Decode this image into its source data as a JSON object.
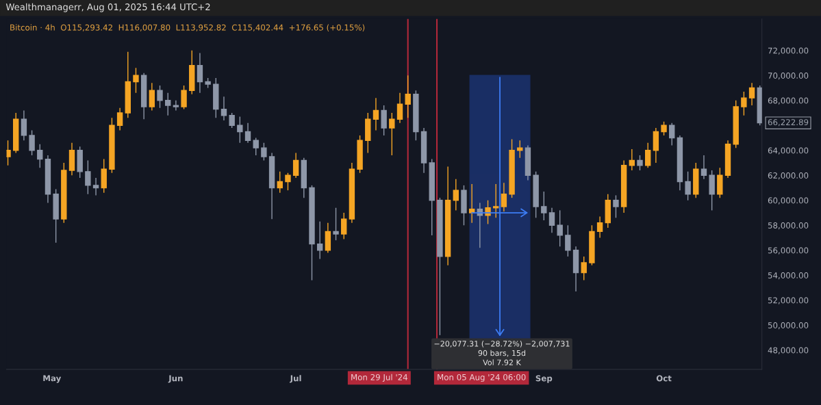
{
  "chart_data": {
    "type": "candlestick",
    "title": "Wealthmanagerr, Aug 01, 2025 16:44 UTC+2",
    "subtitle": "Bitcoin · 4h  O115,293.42  H116,007.80  L113,952.82  C115,402.44  +176.65 (+0.15%)",
    "x": [
      "2024-04-20",
      "2024-04-22",
      "2024-04-24",
      "2024-04-26",
      "2024-04-28",
      "2024-04-30",
      "2024-05-02",
      "2024-05-04",
      "2024-05-06",
      "2024-05-08",
      "2024-05-10",
      "2024-05-12",
      "2024-05-14",
      "2024-05-16",
      "2024-05-18",
      "2024-05-20",
      "2024-05-22",
      "2024-05-24",
      "2024-05-26",
      "2024-05-28",
      "2024-05-30",
      "2024-06-01",
      "2024-06-03",
      "2024-06-05",
      "2024-06-07",
      "2024-06-09",
      "2024-06-11",
      "2024-06-13",
      "2024-06-15",
      "2024-06-17",
      "2024-06-19",
      "2024-06-21",
      "2024-06-23",
      "2024-06-25",
      "2024-06-27",
      "2024-06-29",
      "2024-07-01",
      "2024-07-03",
      "2024-07-05",
      "2024-07-07",
      "2024-07-09",
      "2024-07-11",
      "2024-07-13",
      "2024-07-15",
      "2024-07-17",
      "2024-07-19",
      "2024-07-21",
      "2024-07-23",
      "2024-07-25",
      "2024-07-27",
      "2024-07-29",
      "2024-07-31",
      "2024-08-02",
      "2024-08-04",
      "2024-08-06",
      "2024-08-08",
      "2024-08-10",
      "2024-08-12",
      "2024-08-14",
      "2024-08-16",
      "2024-08-18",
      "2024-08-20",
      "2024-08-22",
      "2024-08-24",
      "2024-08-26",
      "2024-08-28",
      "2024-08-30",
      "2024-09-01",
      "2024-09-03",
      "2024-09-05",
      "2024-09-07",
      "2024-09-09",
      "2024-09-11",
      "2024-09-13",
      "2024-09-15",
      "2024-09-17",
      "2024-09-19",
      "2024-09-21",
      "2024-09-23",
      "2024-09-25",
      "2024-09-27",
      "2024-09-29",
      "2024-10-01",
      "2024-10-03",
      "2024-10-05",
      "2024-10-07",
      "2024-10-09",
      "2024-10-11",
      "2024-10-13",
      "2024-10-15",
      "2024-10-17",
      "2024-10-19",
      "2024-10-21",
      "2024-10-23",
      "2024-10-25"
    ],
    "ohlc": [
      [
        63500,
        64800,
        62800,
        64000
      ],
      [
        64000,
        67000,
        63800,
        66500
      ],
      [
        66500,
        67200,
        64800,
        65200
      ],
      [
        65200,
        65600,
        63600,
        64000
      ],
      [
        64000,
        64500,
        62600,
        63300
      ],
      [
        63300,
        63600,
        59800,
        60500
      ],
      [
        60500,
        60900,
        56600,
        58500
      ],
      [
        58500,
        63000,
        58200,
        62400
      ],
      [
        62400,
        64600,
        62000,
        64000
      ],
      [
        64000,
        64300,
        61800,
        62300
      ],
      [
        62300,
        63200,
        60500,
        61200
      ],
      [
        61200,
        61800,
        60400,
        61000
      ],
      [
        61000,
        63300,
        60600,
        62500
      ],
      [
        62500,
        66600,
        62200,
        66000
      ],
      [
        66000,
        67400,
        65600,
        67000
      ],
      [
        67000,
        71900,
        66600,
        69500
      ],
      [
        69500,
        70600,
        68600,
        70000
      ],
      [
        70000,
        70200,
        66500,
        67500
      ],
      [
        67500,
        69400,
        67200,
        68800
      ],
      [
        68800,
        69200,
        67400,
        68000
      ],
      [
        68000,
        68600,
        66800,
        67600
      ],
      [
        67600,
        68000,
        67200,
        67500
      ],
      [
        67500,
        69200,
        67300,
        68800
      ],
      [
        68800,
        72000,
        68500,
        70800
      ],
      [
        70800,
        71800,
        68600,
        69500
      ],
      [
        69500,
        69800,
        69000,
        69300
      ],
      [
        69300,
        69800,
        66600,
        67300
      ],
      [
        67300,
        68300,
        66400,
        66800
      ],
      [
        66800,
        67000,
        65800,
        66000
      ],
      [
        66000,
        66700,
        64600,
        65500
      ],
      [
        65500,
        66200,
        64600,
        64800
      ],
      [
        64800,
        65000,
        63600,
        64200
      ],
      [
        64200,
        64600,
        63200,
        63500
      ],
      [
        63500,
        63800,
        58500,
        61000
      ],
      [
        61000,
        62300,
        60600,
        61500
      ],
      [
        61500,
        62200,
        60800,
        62000
      ],
      [
        62000,
        63800,
        61800,
        63200
      ],
      [
        63200,
        63400,
        60200,
        61000
      ],
      [
        61000,
        61200,
        53600,
        56500
      ],
      [
        56500,
        58300,
        55300,
        56000
      ],
      [
        56000,
        58200,
        55800,
        57500
      ],
      [
        57500,
        59400,
        56800,
        57300
      ],
      [
        57300,
        59000,
        56900,
        58500
      ],
      [
        58500,
        63000,
        58200,
        62500
      ],
      [
        62500,
        65200,
        62200,
        64800
      ],
      [
        64800,
        67000,
        63800,
        66500
      ],
      [
        66500,
        68200,
        65600,
        67200
      ],
      [
        67200,
        67600,
        65200,
        65800
      ],
      [
        65800,
        67000,
        63600,
        66500
      ],
      [
        66500,
        68600,
        66200,
        67700
      ],
      [
        67700,
        70000,
        66600,
        68500
      ],
      [
        68500,
        68800,
        64800,
        65500
      ],
      [
        65500,
        65800,
        62200,
        63000
      ],
      [
        63000,
        63300,
        57200,
        60000
      ],
      [
        60000,
        60200,
        49200,
        55500
      ],
      [
        55500,
        62700,
        54800,
        60000
      ],
      [
        60000,
        61700,
        59200,
        60800
      ],
      [
        60800,
        61200,
        58000,
        59000
      ],
      [
        59000,
        61300,
        58200,
        59300
      ],
      [
        59300,
        59800,
        56200,
        58800
      ],
      [
        58800,
        60000,
        58100,
        59400
      ],
      [
        59400,
        61300,
        58600,
        59500
      ],
      [
        59500,
        61400,
        59100,
        60500
      ],
      [
        60500,
        64900,
        60200,
        64000
      ],
      [
        64000,
        64800,
        63400,
        64200
      ],
      [
        64200,
        64400,
        61600,
        62000
      ],
      [
        62000,
        62300,
        58600,
        59500
      ],
      [
        59500,
        60700,
        58400,
        59000
      ],
      [
        59000,
        59400,
        57400,
        58000
      ],
      [
        58000,
        59200,
        56300,
        57200
      ],
      [
        57200,
        58000,
        55500,
        56000
      ],
      [
        56000,
        56300,
        52700,
        54200
      ],
      [
        54200,
        55500,
        53600,
        55000
      ],
      [
        55000,
        58000,
        54800,
        57500
      ],
      [
        57500,
        58700,
        57000,
        58200
      ],
      [
        58200,
        60500,
        57800,
        60000
      ],
      [
        60000,
        60400,
        58600,
        59500
      ],
      [
        59500,
        63200,
        59000,
        62800
      ],
      [
        62800,
        64100,
        62400,
        63200
      ],
      [
        63200,
        63600,
        62400,
        62800
      ],
      [
        62800,
        64600,
        62600,
        64000
      ],
      [
        64000,
        65800,
        63000,
        65500
      ],
      [
        65500,
        66300,
        65200,
        66000
      ],
      [
        66000,
        66200,
        64400,
        65000
      ],
      [
        65000,
        65200,
        60800,
        61500
      ],
      [
        61500,
        62300,
        60000,
        60500
      ],
      [
        60500,
        63000,
        60200,
        62500
      ],
      [
        62500,
        63600,
        61700,
        62000
      ],
      [
        62000,
        62400,
        59200,
        60500
      ],
      [
        60500,
        62600,
        60200,
        62000
      ],
      [
        62000,
        64800,
        61800,
        64500
      ],
      [
        64500,
        68000,
        64200,
        67500
      ],
      [
        67500,
        68700,
        66800,
        68200
      ],
      [
        68200,
        69400,
        67600,
        69000
      ],
      [
        69000,
        69200,
        66000,
        66200
      ]
    ],
    "colors": [
      "#f5a524",
      "#f5a524",
      "#8e97a8",
      "#8e97a8",
      "#8e97a8",
      "#8e97a8",
      "#8e97a8",
      "#f5a524",
      "#f5a524",
      "#8e97a8",
      "#8e97a8",
      "#8e97a8",
      "#f5a524",
      "#f5a524",
      "#f5a524",
      "#f5a524",
      "#f5a524",
      "#8e97a8",
      "#f5a524",
      "#8e97a8",
      "#8e97a8",
      "#8e97a8",
      "#f5a524",
      "#f5a524",
      "#8e97a8",
      "#8e97a8",
      "#8e97a8",
      "#8e97a8",
      "#8e97a8",
      "#8e97a8",
      "#8e97a8",
      "#8e97a8",
      "#8e97a8",
      "#8e97a8",
      "#f5a524",
      "#f5a524",
      "#f5a524",
      "#8e97a8",
      "#8e97a8",
      "#8e97a8",
      "#f5a524",
      "#8e97a8",
      "#f5a524",
      "#f5a524",
      "#f5a524",
      "#f5a524",
      "#f5a524",
      "#8e97a8",
      "#f5a524",
      "#f5a524",
      "#f5a524",
      "#8e97a8",
      "#8e97a8",
      "#8e97a8",
      "#8e97a8",
      "#f5a524",
      "#f5a524",
      "#8e97a8",
      "#f5a524",
      "#8e97a8",
      "#f5a524",
      "#f5a524",
      "#f5a524",
      "#f5a524",
      "#f5a524",
      "#8e97a8",
      "#8e97a8",
      "#8e97a8",
      "#8e97a8",
      "#8e97a8",
      "#8e97a8",
      "#8e97a8",
      "#f5a524",
      "#f5a524",
      "#f5a524",
      "#f5a524",
      "#8e97a8",
      "#f5a524",
      "#f5a524",
      "#8e97a8",
      "#f5a524",
      "#f5a524",
      "#f5a524",
      "#8e97a8",
      "#8e97a8",
      "#8e97a8",
      "#f5a524",
      "#8e97a8",
      "#8e97a8",
      "#f5a524",
      "#f5a524",
      "#f5a524",
      "#f5a524",
      "#f5a524",
      "#8e97a8"
    ],
    "xlim": [
      "2024-04-19T16:00",
      "2024-10-25T12:00"
    ],
    "xticks": [
      {
        "value": "2024-05-01",
        "label": "May"
      },
      {
        "value": "2024-06-01",
        "label": "Jun"
      },
      {
        "value": "2024-07-01",
        "label": "Jul"
      },
      {
        "value": "2024-09-01",
        "label": "Sep"
      },
      {
        "value": "2024-10-01",
        "label": "Oct"
      }
    ],
    "ylim": [
      46460,
      74520
    ],
    "yticks": [
      {
        "value": 48000,
        "label": "48,000.00"
      },
      {
        "value": 50000,
        "label": "50,000.00"
      },
      {
        "value": 52000,
        "label": "52,000.00"
      },
      {
        "value": 54000,
        "label": "54,000.00"
      },
      {
        "value": 56000,
        "label": "56,000.00"
      },
      {
        "value": 58000,
        "label": "58,000.00"
      },
      {
        "value": 60000,
        "label": "60,000.00"
      },
      {
        "value": 62000,
        "label": "62,000.00"
      },
      {
        "value": 64000,
        "label": "64,000.00"
      },
      {
        "value": 68000,
        "label": "68,000.00"
      },
      {
        "value": 70000,
        "label": "70,000.00"
      },
      {
        "value": 72000,
        "label": "72,000.00"
      }
    ],
    "ref_lines": [
      {
        "axis": "x",
        "value": "2024-07-29",
        "label": "Mon 29 Jul '24",
        "color": "#b2283a"
      },
      {
        "axis": "x",
        "value": "2024-08-05T06:00",
        "label": "Mon 05 Aug '24 06:00",
        "color": "#b2283a"
      }
    ],
    "bands": [
      {
        "axis": "x",
        "from": "2024-08-13T12:00",
        "to": "2024-08-28T12:00",
        "color": "#1c3370"
      }
    ],
    "annotations": [
      {
        "text": "−20,077.31 (−28.72%) −2,007,731\n90 bars, 15d\nVol 7.92 K",
        "x": "2024-08-21T12:00",
        "y": 48950
      },
      "66,222.89"
    ],
    "grid": false,
    "legend": false
  }
}
